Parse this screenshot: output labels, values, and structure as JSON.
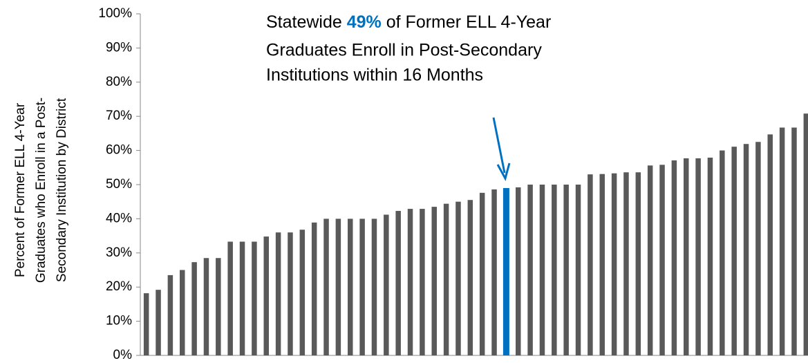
{
  "chart_data": {
    "type": "bar",
    "annotation_lines": [
      [
        "Statewide",
        "49%",
        "of Former ELL 4-Year"
      ],
      [
        "Graduates Enroll in Post-Secondary"
      ],
      [
        "Institutions within 16 Months"
      ]
    ],
    "y_label_lines": [
      "Percent of Former ELL 4-Year",
      "Graduates who Enroll in a Post-",
      "Secondary Institution by District"
    ],
    "categories": [
      null,
      null,
      null,
      null,
      null,
      null,
      null,
      null,
      null,
      null,
      null,
      null,
      null,
      null,
      null,
      null,
      null,
      null,
      null,
      null,
      null,
      null,
      null,
      null,
      null,
      null,
      null,
      null,
      null,
      null,
      null,
      null,
      null,
      null,
      null,
      null,
      null,
      null,
      null,
      null,
      null,
      null,
      null,
      null,
      null,
      null,
      null,
      null,
      null,
      null,
      null,
      null,
      null,
      null,
      null,
      null
    ],
    "values": [
      18.2,
      19.2,
      23.5,
      25,
      27.3,
      28.5,
      28.5,
      33.3,
      33.3,
      33.3,
      34.8,
      36,
      36,
      36.8,
      38.9,
      40,
      40,
      40,
      40,
      40,
      41.2,
      42.3,
      42.9,
      42.9,
      43.5,
      44.4,
      45,
      45.5,
      47.6,
      48.6,
      49,
      49.2,
      50,
      50,
      50,
      50,
      50,
      53,
      53.1,
      53.3,
      53.6,
      53.6,
      55.6,
      55.8,
      57.1,
      57.7,
      57.7,
      57.9,
      60,
      61.1,
      61.9,
      62.5,
      64.7,
      66.7,
      66.7,
      70.8
    ],
    "colors": [
      "#595959",
      "#595959",
      "#595959",
      "#595959",
      "#595959",
      "#595959",
      "#595959",
      "#595959",
      "#595959",
      "#595959",
      "#595959",
      "#595959",
      "#595959",
      "#595959",
      "#595959",
      "#595959",
      "#595959",
      "#595959",
      "#595959",
      "#595959",
      "#595959",
      "#595959",
      "#595959",
      "#595959",
      "#595959",
      "#595959",
      "#595959",
      "#595959",
      "#595959",
      "#595959",
      "#0070c0",
      "#595959",
      "#595959",
      "#595959",
      "#595959",
      "#595959",
      "#595959",
      "#595959",
      "#595959",
      "#595959",
      "#595959",
      "#595959",
      "#595959",
      "#595959",
      "#595959",
      "#595959",
      "#595959",
      "#595959",
      "#595959",
      "#595959",
      "#595959",
      "#595959",
      "#595959",
      "#595959",
      "#595959",
      "#595959"
    ],
    "ylim": [
      0,
      100
    ],
    "yticks": [
      {
        "value": 0,
        "label": "0%"
      },
      {
        "value": 10,
        "label": "10%"
      },
      {
        "value": 20,
        "label": "20%"
      },
      {
        "value": 30,
        "label": "30%"
      },
      {
        "value": 40,
        "label": "40%"
      },
      {
        "value": 50,
        "label": "50%"
      },
      {
        "value": 60,
        "label": "60%"
      },
      {
        "value": 70,
        "label": "70%"
      },
      {
        "value": 80,
        "label": "80%"
      },
      {
        "value": 90,
        "label": "90%"
      },
      {
        "value": 100,
        "label": "100%"
      }
    ],
    "grid": false
  }
}
